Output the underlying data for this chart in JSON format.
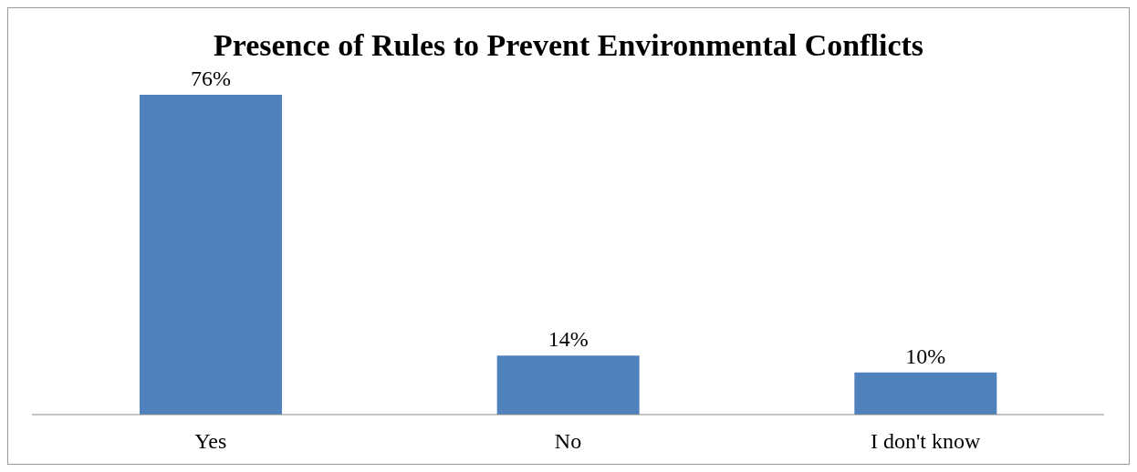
{
  "chart_data": {
    "type": "bar",
    "title": "Presence of Rules to Prevent Environmental Conflicts",
    "categories": [
      "Yes",
      "No",
      "I don't know"
    ],
    "values": [
      76,
      14,
      10
    ],
    "value_labels": [
      "76%",
      "14%",
      "10%"
    ],
    "color": "#4f81bd",
    "grid": false
  }
}
